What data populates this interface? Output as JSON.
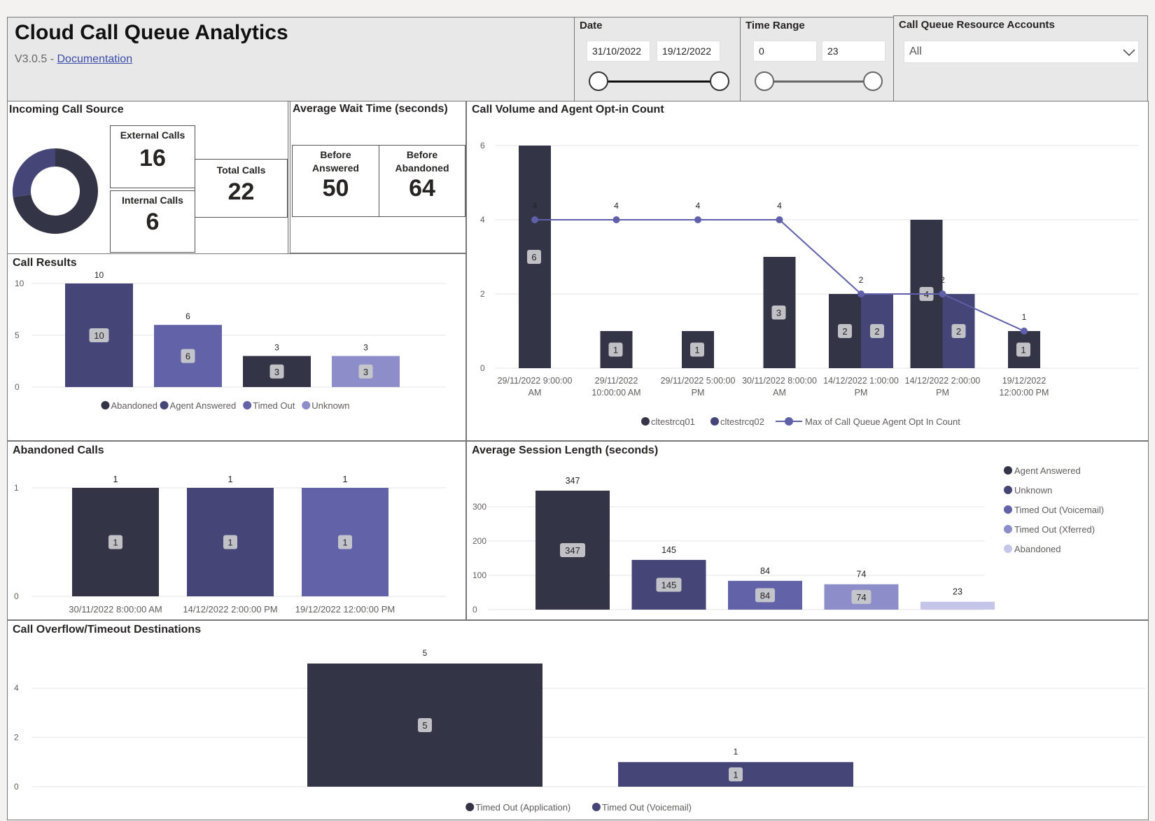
{
  "header": {
    "title": "Cloud Call Queue Analytics",
    "version": "V3.0.5 - ",
    "doc_link": "Documentation"
  },
  "filters": {
    "date_label": "Date",
    "date_start": "31/10/2022",
    "date_end": "19/12/2022",
    "time_label": "Time Range",
    "time_start": "0",
    "time_end": "23",
    "accounts_label": "Call Queue Resource Accounts",
    "accounts_value": "All",
    "dropdown_icon": "chevron-down-icon"
  },
  "incoming": {
    "title": "Incoming Call Source",
    "external_label": "External Calls",
    "external_value": "16",
    "internal_label": "Internal Calls",
    "internal_value": "6",
    "total_label": "Total Calls",
    "total_value": "22",
    "donut": [
      {
        "label": "External Calls",
        "value": 16,
        "color": "#343447"
      },
      {
        "label": "Internal Calls",
        "value": 6,
        "color": "#454578"
      }
    ]
  },
  "wait": {
    "title": "Average Wait Time (seconds)",
    "answered_label": "Before Answered",
    "answered_value": "50",
    "abandoned_label": "Before Abandoned",
    "abandoned_value": "64"
  },
  "colors": {
    "c1": "#343447",
    "c2": "#454578",
    "c3": "#6262a8",
    "c4": "#8d8dc9",
    "c5": "#c5c5ea",
    "line": "#5f5faa"
  },
  "chart_data": [
    {
      "id": "call_results",
      "type": "bar",
      "title": "Call Results",
      "categories": [
        "Abandoned",
        "Agent Answered",
        "Timed Out",
        "Unknown"
      ],
      "values": [
        10,
        6,
        3,
        3
      ],
      "colors": [
        "#454578",
        "#6262a8",
        "#343447",
        "#8d8dc9"
      ],
      "legend": [
        "Abandoned",
        "Agent Answered",
        "Timed Out",
        "Unknown"
      ],
      "legend_colors": [
        "#343447",
        "#454578",
        "#6262a8",
        "#8d8dc9"
      ],
      "yticks": [
        0,
        5,
        10
      ],
      "ylim": [
        0,
        10
      ],
      "grid": true,
      "legend_position": "bottom"
    },
    {
      "id": "call_volume",
      "type": "bar+line",
      "title": "Call Volume and Agent Opt-in Count",
      "categories": [
        "29/11/2022 9:00:00 AM",
        "29/11/2022 10:00:00 AM",
        "29/11/2022 5:00:00 PM",
        "30/11/2022 8:00:00 AM",
        "14/12/2022 1:00:00 PM",
        "14/12/2022 2:00:00 PM",
        "19/12/2022 12:00:00 PM"
      ],
      "category_lines": [
        [
          "29/11/2022 9:00:00",
          "AM"
        ],
        [
          "29/11/2022",
          "10:00:00 AM"
        ],
        [
          "29/11/2022 5:00:00",
          "PM"
        ],
        [
          "30/11/2022 8:00:00",
          "AM"
        ],
        [
          "14/12/2022 1:00:00",
          "PM"
        ],
        [
          "14/12/2022 2:00:00",
          "PM"
        ],
        [
          "19/12/2022",
          "12:00:00 PM"
        ]
      ],
      "series": [
        {
          "name": "cltestrcq01",
          "values": [
            6,
            1,
            1,
            3,
            2,
            4,
            1
          ],
          "color": "#343447"
        },
        {
          "name": "cltestrcq02",
          "values": [
            null,
            null,
            null,
            null,
            2,
            2,
            null
          ],
          "color": "#454578"
        }
      ],
      "line": {
        "name": "Max of Call Queue Agent Opt In Count",
        "values": [
          4,
          4,
          4,
          4,
          2,
          2,
          1
        ],
        "color": "#5f5faa"
      },
      "yticks": [
        0,
        2,
        4,
        6
      ],
      "ylim": [
        0,
        6
      ],
      "grid": true,
      "legend_position": "bottom"
    },
    {
      "id": "abandoned_calls",
      "type": "bar",
      "title": "Abandoned Calls",
      "categories": [
        "30/11/2022 8:00:00 AM",
        "14/12/2022 2:00:00 PM",
        "19/12/2022 12:00:00 PM"
      ],
      "values": [
        1,
        1,
        1
      ],
      "colors": [
        "#343447",
        "#454578",
        "#6262a8"
      ],
      "yticks": [
        0,
        1
      ],
      "ylim": [
        0,
        1
      ],
      "grid": true
    },
    {
      "id": "session_length",
      "type": "bar",
      "title": "Average Session Length (seconds)",
      "categories": [
        "Agent Answered",
        "Unknown",
        "Timed Out (Voicemail)",
        "Timed Out (Xferred)",
        "Abandoned"
      ],
      "values": [
        347,
        145,
        84,
        74,
        23
      ],
      "colors": [
        "#343447",
        "#454578",
        "#6262a8",
        "#8d8dc9",
        "#c5c5ea"
      ],
      "yticks": [
        0,
        100,
        200,
        300
      ],
      "ylim": [
        0,
        347
      ],
      "grid": true,
      "legend_position": "right"
    },
    {
      "id": "overflow",
      "type": "bar",
      "title": "Call Overflow/Timeout Destinations",
      "categories": [
        "Timed Out (Application)",
        "Timed Out (Voicemail)"
      ],
      "values": [
        5,
        1
      ],
      "colors": [
        "#343447",
        "#454578"
      ],
      "yticks": [
        0,
        2,
        4
      ],
      "ylim": [
        0,
        5
      ],
      "grid": true,
      "legend_position": "bottom"
    }
  ]
}
